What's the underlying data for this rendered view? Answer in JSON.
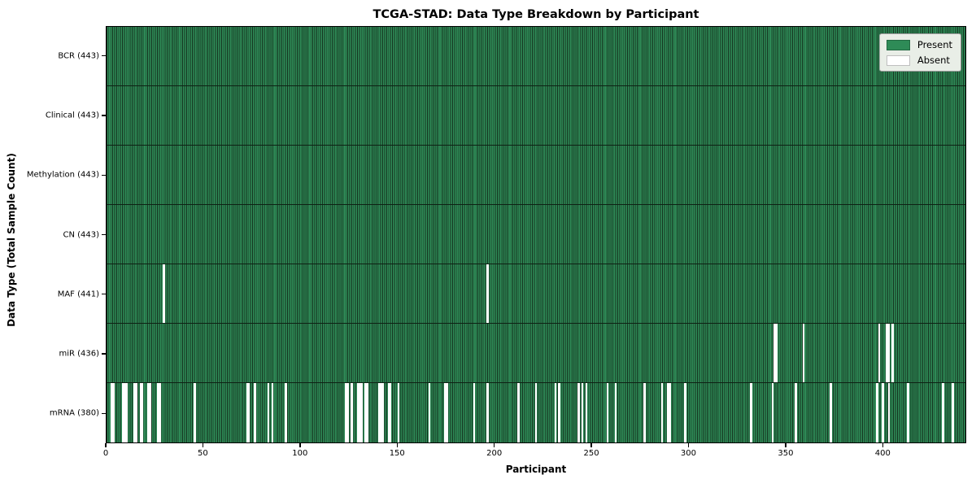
{
  "chart_data": {
    "type": "heatmap",
    "title": "TCGA-STAD: Data Type Breakdown by Participant",
    "xlabel": "Participant",
    "ylabel": "Data Type (Total Sample Count)",
    "x_ticks": [
      0,
      50,
      100,
      150,
      200,
      250,
      300,
      350,
      400
    ],
    "xlim": [
      0,
      443
    ],
    "n_participants": 443,
    "grid": false,
    "legend_position": "upper right",
    "legend": [
      {
        "label": "Present",
        "color": "#2e8b57"
      },
      {
        "label": "Absent",
        "color": "#ffffff"
      }
    ],
    "rows": [
      {
        "label": "BCR (443)",
        "data_type": "BCR",
        "present_count": 443,
        "absent_participants": []
      },
      {
        "label": "Clinical (443)",
        "data_type": "Clinical",
        "present_count": 443,
        "absent_participants": []
      },
      {
        "label": "Methylation (443)",
        "data_type": "Methylation",
        "present_count": 443,
        "absent_participants": []
      },
      {
        "label": "CN (443)",
        "data_type": "CN",
        "present_count": 443,
        "absent_participants": []
      },
      {
        "label": "MAF (441)",
        "data_type": "MAF",
        "present_count": 441,
        "absent_participants": [
          29,
          196
        ]
      },
      {
        "label": "miR (436)",
        "data_type": "miR",
        "present_count": 436,
        "absent_participants": [
          344,
          345,
          359,
          398,
          402,
          403,
          405
        ]
      },
      {
        "label": "mRNA (380)",
        "data_type": "mRNA",
        "present_count": 380,
        "absent_participants": [
          2,
          3,
          8,
          9,
          10,
          14,
          15,
          17,
          18,
          21,
          22,
          26,
          27,
          45,
          72,
          73,
          76,
          83,
          85,
          92,
          123,
          124,
          126,
          129,
          130,
          131,
          133,
          134,
          140,
          141,
          142,
          145,
          146,
          150,
          166,
          174,
          175,
          189,
          196,
          212,
          221,
          231,
          233,
          243,
          245,
          247,
          258,
          262,
          277,
          286,
          289,
          290,
          298,
          332,
          343,
          355,
          373,
          397,
          400,
          403,
          413,
          431,
          436
        ]
      }
    ],
    "colors": {
      "present": "#2e8b57",
      "absent": "#ffffff",
      "bar_edge": "#15331f",
      "row_divider": "#0e2114",
      "spine": "#000000",
      "legend_background": "#e9eee7",
      "figure_background": "#ffffff"
    }
  }
}
